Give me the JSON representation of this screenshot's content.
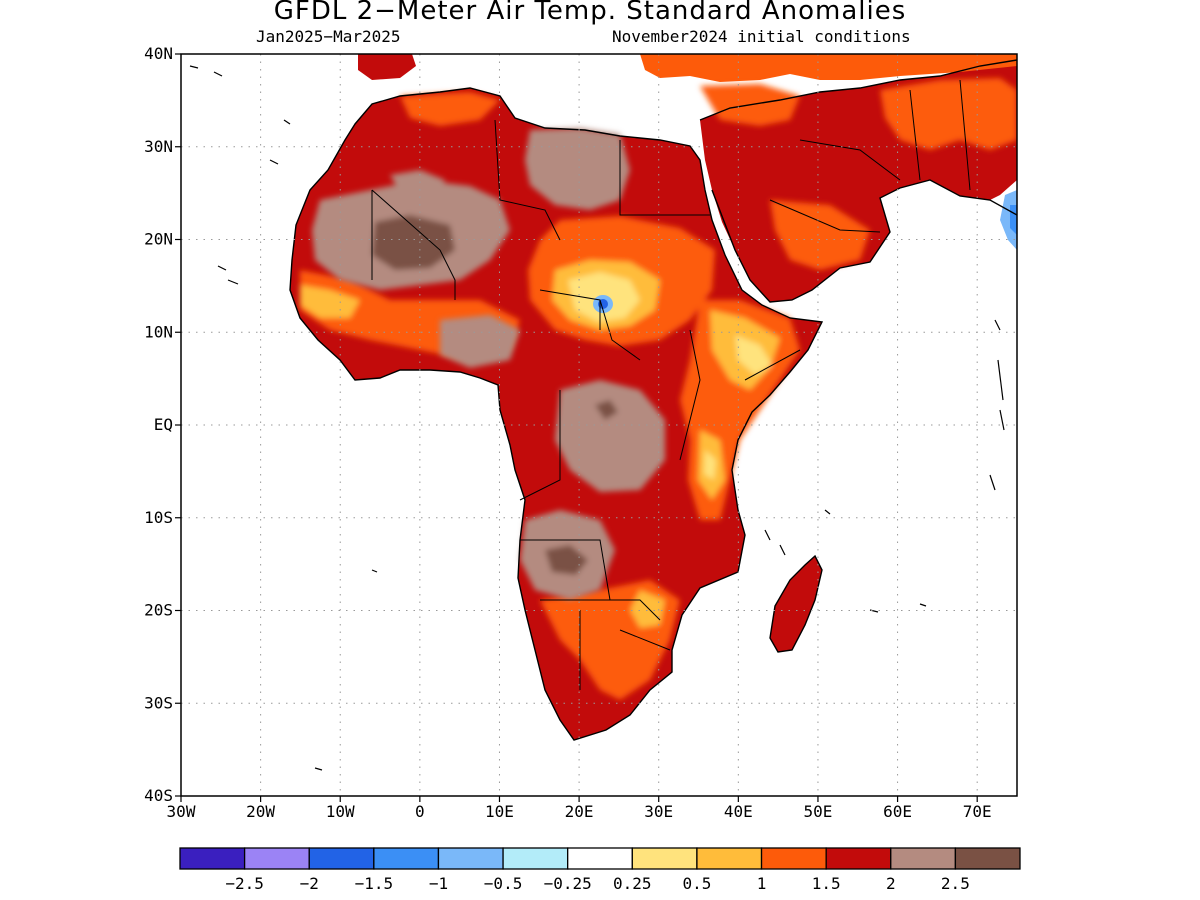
{
  "title": "GFDL 2−Meter Air Temp. Standard Anomalies",
  "subtitle_left": "Jan2025−Mar2025",
  "subtitle_right": "November2024 initial conditions",
  "map": {
    "lon_range": [
      -30,
      75
    ],
    "lat_range": [
      -40,
      40
    ],
    "lon_ticks": [
      "30W",
      "20W",
      "10W",
      "0",
      "10E",
      "20E",
      "30E",
      "40E",
      "50E",
      "60E",
      "70E"
    ],
    "lat_ticks": [
      "40N",
      "30N",
      "20N",
      "10N",
      "EQ",
      "10S",
      "20S",
      "30S",
      "40S"
    ]
  },
  "legend": {
    "colors": [
      "#3a1fbf",
      "#9b83f5",
      "#2263e6",
      "#3b8ff5",
      "#7ab8f9",
      "#b3ecf9",
      "#ffffff",
      "#ffe37d",
      "#ffbc3a",
      "#fd5b0a",
      "#c20b0b",
      "#b48b80",
      "#7a5144"
    ],
    "labels": [
      "−2.5",
      "−2",
      "−1.5",
      "−1",
      "−0.5",
      "−0.25",
      "0.25",
      "0.5",
      "1",
      "1.5",
      "2",
      "2.5"
    ]
  }
}
